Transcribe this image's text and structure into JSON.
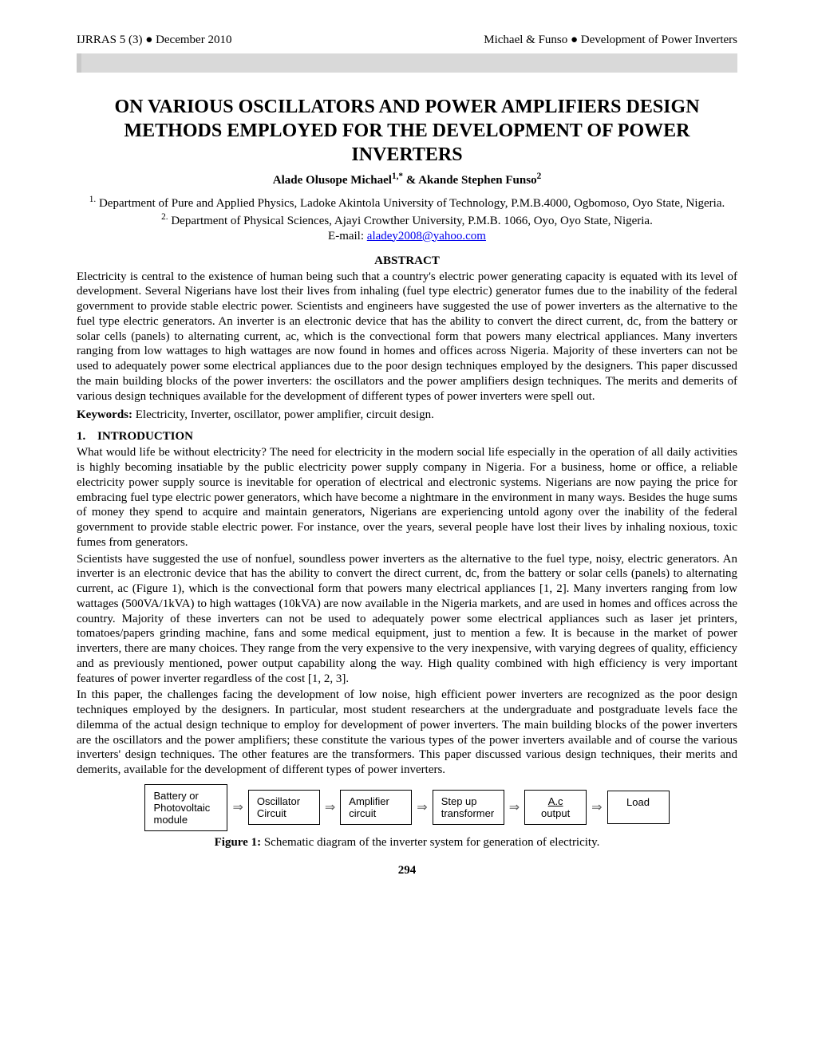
{
  "header": {
    "left": "IJRRAS 5 (3) ● December 2010",
    "right": "Michael & Funso ● Development of Power Inverters"
  },
  "bar": {
    "bg": "#d9d9d9",
    "border": "#c9c9c9"
  },
  "title_lines": [
    "ON VARIOUS OSCILLATORS AND POWER AMPLIFIERS DESIGN",
    "METHODS EMPLOYED FOR THE DEVELOPMENT OF POWER",
    "INVERTERS"
  ],
  "authors": {
    "a1_name": "Alade Olusope Michael",
    "a1_sup": "1,*",
    "amp": " & ",
    "a2_name": "Akande Stephen Funso",
    "a2_sup": "2"
  },
  "affiliations": {
    "a1_sup": "1.",
    "a1_text": " Department of Pure and Applied Physics, Ladoke Akintola University of Technology, P.M.B.4000, Ogbomoso, Oyo State, Nigeria.",
    "a2_sup": "2.",
    "a2_text": " Department of Physical Sciences, Ajayi Crowther University, P.M.B. 1066, Oyo, Oyo State, Nigeria."
  },
  "email": {
    "label": "E-mail: ",
    "address": "aladey2008@yahoo.com"
  },
  "abstract_head": "ABSTRACT",
  "abstract_body": "Electricity is central to the existence of human being such that a country's electric power generating capacity is equated with its level of development. Several Nigerians have lost their lives from inhaling (fuel type electric) generator fumes due to the inability of the federal government to provide stable electric power. Scientists and engineers have suggested the use of power inverters as the alternative to the fuel type electric generators. An inverter is an electronic device that has the ability to convert the direct current, dc, from the battery or solar cells (panels) to alternating current, ac, which is the convectional form that powers many electrical appliances. Many inverters ranging from low wattages to high wattages are now found in homes and offices across Nigeria. Majority of these inverters can not be used to adequately power some electrical appliances due to the poor design techniques employed by the designers. This paper discussed the main building blocks of the power inverters: the oscillators and the power amplifiers design techniques. The merits and demerits of various design techniques available for the development of different types of power inverters were spell out.",
  "keywords": {
    "label": "Keywords:",
    "text": " Electricity, Inverter, oscillator, power amplifier, circuit design."
  },
  "section1": {
    "num": "1.",
    "title": "INTRODUCTION"
  },
  "intro_p1": "What would life be without electricity? The need for electricity in the modern social life especially in the operation of all daily activities is highly becoming insatiable by the public electricity power supply company in Nigeria. For a business, home or office, a reliable electricity power supply source is inevitable for operation of electrical and electronic systems. Nigerians are now paying the price for embracing fuel type electric power generators, which have become a nightmare in the environment in many ways. Besides the huge sums of money they spend to acquire and maintain generators, Nigerians are experiencing untold agony over the inability of the federal government to provide stable electric power. For instance, over the years, several people have lost their lives by inhaling noxious, toxic fumes from generators.",
  "intro_p2": "Scientists have suggested the use of nonfuel, soundless power inverters as the alternative to the fuel type, noisy, electric generators. An inverter is an electronic device that has the ability to convert the direct current, dc, from the battery or solar cells (panels) to alternating current, ac (Figure 1), which is the convectional form that powers many electrical appliances [1, 2]. Many inverters ranging from low wattages (500VA/1kVA) to high wattages (10kVA) are now available in the Nigeria markets, and are used in homes and offices across the country. Majority of these inverters can not be used to adequately power some electrical appliances such as laser jet printers, tomatoes/papers grinding machine, fans and some medical equipment, just to mention a few. It is because in the market of power inverters, there are many choices. They range from the very expensive to the very inexpensive, with varying degrees of quality, efficiency and as previously mentioned, power output capability along the way. High quality combined with high efficiency is very important features of power inverter regardless of the cost [1, 2, 3].",
  "intro_p3": "In this paper, the challenges facing the development of low noise, high efficient power inverters are recognized as the poor design techniques employed by the designers. In particular, most student researchers at the undergraduate and postgraduate levels face the dilemma of the actual design technique to employ for development of power inverters. The main building blocks of the power inverters are the oscillators and the power amplifiers; these constitute the various types of the power inverters available and of course the various inverters' design techniques. The other features are the transformers. This paper discussed various design techniques, their merits and demerits, available for the development of different types of power inverters.",
  "figure": {
    "boxes": [
      {
        "l1": "Battery or",
        "l2": "Photovoltaic",
        "l3": "module",
        "cls": "wide"
      },
      {
        "l1": "Oscillator",
        "l2": "Circuit",
        "l3": "",
        "cls": "med"
      },
      {
        "l1": "Amplifier",
        "l2": "circuit",
        "l3": "",
        "cls": "med"
      },
      {
        "l1": "Step up",
        "l2": "transformer",
        "l3": "",
        "cls": "med"
      },
      {
        "l1": "A.c",
        "l2": "output",
        "l3": "",
        "cls": "small",
        "ac": true
      },
      {
        "l1": "Load",
        "l2": "",
        "l3": "",
        "cls": "small"
      }
    ],
    "arrow_glyph": "⇒"
  },
  "figcap": {
    "num": "Figure 1:",
    "text": "  Schematic diagram of the inverter system for generation of electricity."
  },
  "pagenum": "294"
}
